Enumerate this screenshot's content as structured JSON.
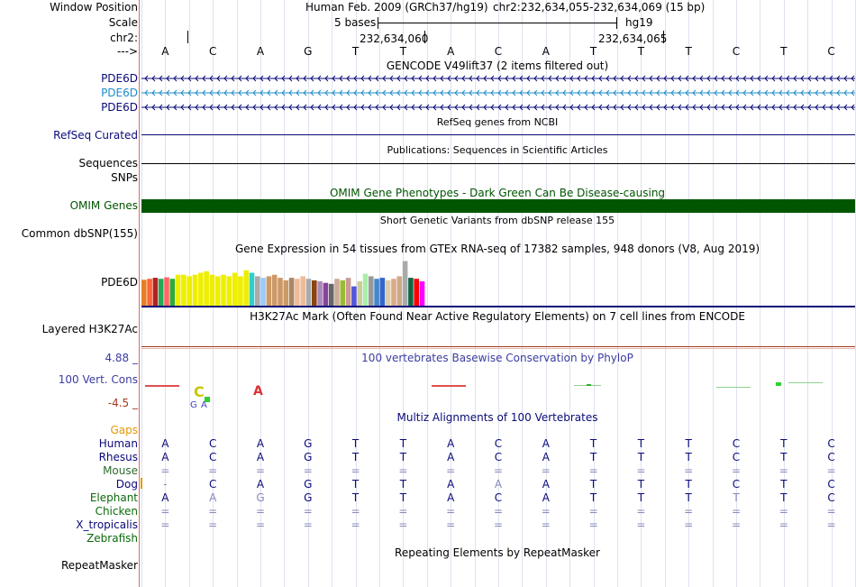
{
  "header": {
    "window_position_label": "Window Position",
    "assembly_text": "Human Feb. 2009 (GRCh37/hg19)",
    "position_text": "chr2:232,634,055-232,634,069 (15 bp)",
    "scale_label": "Scale",
    "scale_bases": "5 bases",
    "scale_db": "hg19",
    "chrom_label": "chr2:",
    "coord_1": "232,634,060",
    "coord_2": "232,634,065",
    "seq_label": "--->"
  },
  "sequence": [
    "A",
    "C",
    "A",
    "G",
    "T",
    "T",
    "A",
    "C",
    "A",
    "T",
    "T",
    "T",
    "C",
    "T",
    "C"
  ],
  "tracks": {
    "gencode_title": "GENCODE V49lift37 (2 items filtered out)",
    "gencode_items": [
      {
        "label": "PDE6D",
        "color": "#0a0a78"
      },
      {
        "label": "PDE6D",
        "color": "#1e8cc8"
      },
      {
        "label": "PDE6D",
        "color": "#0a0a78"
      }
    ],
    "refseq_title": "RefSeq genes from NCBI",
    "refseq_label": "RefSeq Curated",
    "pubs_title": "Publications: Sequences in Scientific Articles",
    "pubs_label": "Sequences",
    "snps_label": "SNPs",
    "omim_title": "OMIM Gene Phenotypes - Dark Green Can Be Disease-causing",
    "omim_label": "OMIM Genes",
    "dbsnp_title": "Short Genetic Variants from dbSNP release 155",
    "dbsnp_label": "Common dbSNP(155)",
    "gtex_title": "Gene Expression in 54 tissues from GTEx RNA-seq of 17382 samples, 948 donors (V8, Aug 2019)",
    "gtex_label": "PDE6D",
    "h3k27_title": "H3K27Ac Mark (Often Found Near Active Regulatory Elements) on 7 cell lines from ENCODE",
    "h3k27_label": "Layered H3K27Ac",
    "phylop_title": "100 vertebrates Basewise Conservation by PhyloP",
    "phylop_label": "100 Vert. Cons",
    "phylop_max": "4.88 _",
    "phylop_min": "-4.5 _",
    "multiz_title": "Multiz Alignments of 100 Vertebrates",
    "gaps_label": "Gaps",
    "repeat_title": "Repeating Elements by RepeatMasker",
    "repeat_label": "RepeatMasker"
  },
  "gtex_values": [
    {
      "v": 0.53,
      "c": "#e67e22"
    },
    {
      "v": 0.55,
      "c": "#ff6633"
    },
    {
      "v": 0.57,
      "c": "#b22222"
    },
    {
      "v": 0.55,
      "c": "#22aa55"
    },
    {
      "v": 0.58,
      "c": "#ff6666"
    },
    {
      "v": 0.55,
      "c": "#33aa33"
    },
    {
      "v": 0.63,
      "c": "#eeee00"
    },
    {
      "v": 0.63,
      "c": "#eeee00"
    },
    {
      "v": 0.6,
      "c": "#eeee00"
    },
    {
      "v": 0.63,
      "c": "#eeee00"
    },
    {
      "v": 0.67,
      "c": "#eeee00"
    },
    {
      "v": 0.7,
      "c": "#eeee00"
    },
    {
      "v": 0.63,
      "c": "#eeee00"
    },
    {
      "v": 0.6,
      "c": "#eeee00"
    },
    {
      "v": 0.63,
      "c": "#eeee00"
    },
    {
      "v": 0.6,
      "c": "#eeee00"
    },
    {
      "v": 0.67,
      "c": "#eeee00"
    },
    {
      "v": 0.6,
      "c": "#eeee00"
    },
    {
      "v": 0.72,
      "c": "#eeee00"
    },
    {
      "v": 0.67,
      "c": "#33cccc"
    },
    {
      "v": 0.6,
      "c": "#aaaaaa"
    },
    {
      "v": 0.57,
      "c": "#99ccff"
    },
    {
      "v": 0.6,
      "c": "#cc9966"
    },
    {
      "v": 0.63,
      "c": "#cc9966"
    },
    {
      "v": 0.57,
      "c": "#cc9966"
    },
    {
      "v": 0.52,
      "c": "#cc9966"
    },
    {
      "v": 0.57,
      "c": "#aa8866"
    },
    {
      "v": 0.55,
      "c": "#eebb99"
    },
    {
      "v": 0.6,
      "c": "#eebb99"
    },
    {
      "v": 0.55,
      "c": "#aaaaaa"
    },
    {
      "v": 0.52,
      "c": "#8b4513"
    },
    {
      "v": 0.5,
      "c": "#aa88bb"
    },
    {
      "v": 0.47,
      "c": "#884499"
    },
    {
      "v": 0.45,
      "c": "#666666"
    },
    {
      "v": 0.55,
      "c": "#ccaa99"
    },
    {
      "v": 0.52,
      "c": "#99bb33"
    },
    {
      "v": 0.57,
      "c": "#cc9999"
    },
    {
      "v": 0.4,
      "c": "#5555dd"
    },
    {
      "v": 0.5,
      "c": "#cccc99"
    },
    {
      "v": 0.65,
      "c": "#aaeeaa"
    },
    {
      "v": 0.6,
      "c": "#999999"
    },
    {
      "v": 0.55,
      "c": "#4488cc"
    },
    {
      "v": 0.57,
      "c": "#3366cc"
    },
    {
      "v": 0.52,
      "c": "#ddccaa"
    },
    {
      "v": 0.55,
      "c": "#ddaa88"
    },
    {
      "v": 0.6,
      "c": "#ccaa88"
    },
    {
      "v": 0.9,
      "c": "#aaaaaa"
    },
    {
      "v": 0.57,
      "c": "#116644"
    },
    {
      "v": 0.55,
      "c": "#ff0000"
    },
    {
      "v": 0.5,
      "c": "#ff00ff"
    }
  ],
  "multiz": [
    {
      "species": "Human",
      "color": "#0a0a78",
      "bases": [
        "A",
        "C",
        "A",
        "G",
        "T",
        "T",
        "A",
        "C",
        "A",
        "T",
        "T",
        "T",
        "C",
        "T",
        "C"
      ],
      "dim": []
    },
    {
      "species": "Rhesus",
      "color": "#0a0a78",
      "bases": [
        "A",
        "C",
        "A",
        "G",
        "T",
        "T",
        "A",
        "C",
        "A",
        "T",
        "T",
        "T",
        "C",
        "T",
        "C"
      ],
      "dim": []
    },
    {
      "species": "Mouse",
      "color": "#2e6b2e",
      "bases": [
        "=",
        "=",
        "=",
        "=",
        "=",
        "=",
        "=",
        "=",
        "=",
        "=",
        "=",
        "=",
        "=",
        "=",
        "="
      ],
      "dim": []
    },
    {
      "species": "Dog",
      "color": "#0a0a78",
      "bases": [
        "-",
        "C",
        "A",
        "G",
        "T",
        "T",
        "A",
        "A",
        "A",
        "T",
        "T",
        "T",
        "C",
        "T",
        "C"
      ],
      "dim": [
        0,
        7
      ]
    },
    {
      "species": "Elephant",
      "color": "#0a6b0a",
      "bases": [
        "A",
        "A",
        "G",
        "G",
        "T",
        "T",
        "A",
        "C",
        "A",
        "T",
        "T",
        "T",
        "T",
        "T",
        "C"
      ],
      "dim": [
        1,
        2,
        12
      ]
    },
    {
      "species": "Chicken",
      "color": "#0a6b0a",
      "bases": [
        "=",
        "=",
        "=",
        "=",
        "=",
        "=",
        "=",
        "=",
        "=",
        "=",
        "=",
        "=",
        "=",
        "=",
        "="
      ],
      "dim": []
    },
    {
      "species": "X_tropicalis",
      "color": "#0a0a78",
      "bases": [
        "=",
        "=",
        "=",
        "=",
        "=",
        "=",
        "=",
        "=",
        "=",
        "=",
        "=",
        "=",
        "=",
        "=",
        "="
      ],
      "dim": []
    },
    {
      "species": "Zebrafish",
      "color": "#0a6b0a",
      "bases": [],
      "dim": []
    }
  ],
  "colors": {
    "omim_green": "#005500",
    "phylop_blue": "#3c3ca0",
    "phylop_red": "#a03c1e",
    "gaps_orange": "#e69600",
    "grid": "#dde2ee"
  }
}
